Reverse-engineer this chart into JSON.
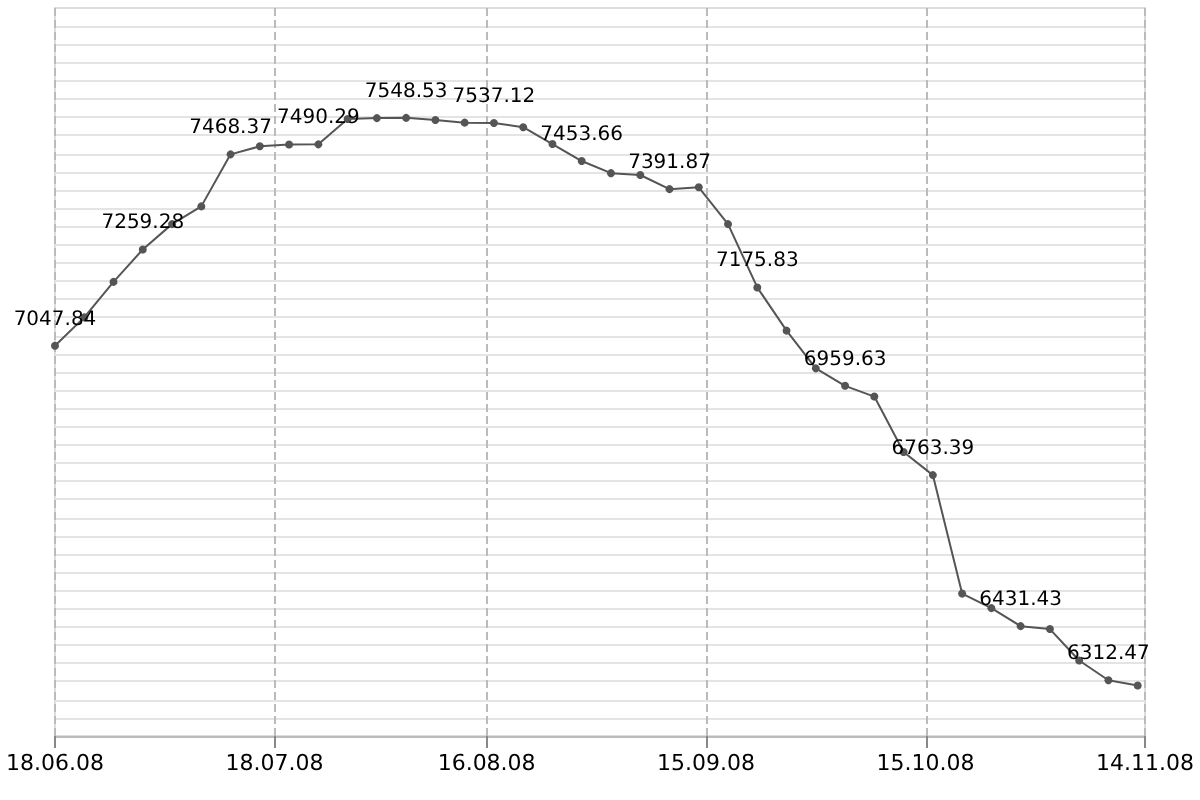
{
  "chart_data": {
    "type": "line",
    "x": [
      "2008-06-18",
      "2008-06-22",
      "2008-06-26",
      "2008-06-30",
      "2008-07-04",
      "2008-07-08",
      "2008-07-12",
      "2008-07-16",
      "2008-07-20",
      "2008-07-24",
      "2008-07-28",
      "2008-08-01",
      "2008-08-05",
      "2008-08-09",
      "2008-08-13",
      "2008-08-17",
      "2008-08-21",
      "2008-08-25",
      "2008-08-29",
      "2008-09-02",
      "2008-09-06",
      "2008-09-10",
      "2008-09-14",
      "2008-09-18",
      "2008-09-22",
      "2008-09-26",
      "2008-09-30",
      "2008-10-04",
      "2008-10-08",
      "2008-10-12",
      "2008-10-16",
      "2008-10-20",
      "2008-10-24",
      "2008-10-28",
      "2008-11-01",
      "2008-11-05",
      "2008-11-09",
      "2008-11-13"
    ],
    "series": [
      {
        "color": "#555555",
        "values": [
          7047.84,
          7110,
          7188,
          7259.28,
          7315,
          7354,
          7468.37,
          7486,
          7490,
          7490.29,
          7546,
          7548,
          7548.53,
          7544,
          7538,
          7537.12,
          7528,
          7491,
          7453.66,
          7427,
          7423,
          7391.87,
          7396,
          7315,
          7175.83,
          7081,
          6998,
          6959.63,
          6936,
          6814,
          6763.39,
          6503,
          6471,
          6431.43,
          6425,
          6356,
          6312.47,
          6301
        ],
        "value_labels": [
          "7047.84",
          null,
          null,
          "7259.28",
          null,
          null,
          "7468.37",
          null,
          null,
          "7490.29",
          null,
          null,
          "7548.53",
          null,
          null,
          "7537.12",
          null,
          null,
          "7453.66",
          null,
          null,
          "7391.87",
          null,
          null,
          "7175.83",
          null,
          null,
          "6959.63",
          null,
          null,
          "6763.39",
          null,
          null,
          "6431.43",
          null,
          null,
          "6312.47",
          null
        ]
      }
    ],
    "xlim": [
      "2008-06-18",
      "2008-11-14"
    ],
    "xticks": [
      {
        "value": "2008-06-18",
        "label": "18.06.08"
      },
      {
        "value": "2008-07-18",
        "label": "18.07.08"
      },
      {
        "value": "2008-08-16",
        "label": "16.08.08"
      },
      {
        "value": "2008-09-15",
        "label": "15.09.08"
      },
      {
        "value": "2008-10-15",
        "label": "15.10.08"
      },
      {
        "value": "2008-11-14",
        "label": "14.11.08"
      }
    ],
    "ylim": [
      6190,
      7790
    ],
    "tick_labels": "x",
    "grid": true,
    "marker": "circle",
    "line_style": "solid"
  }
}
